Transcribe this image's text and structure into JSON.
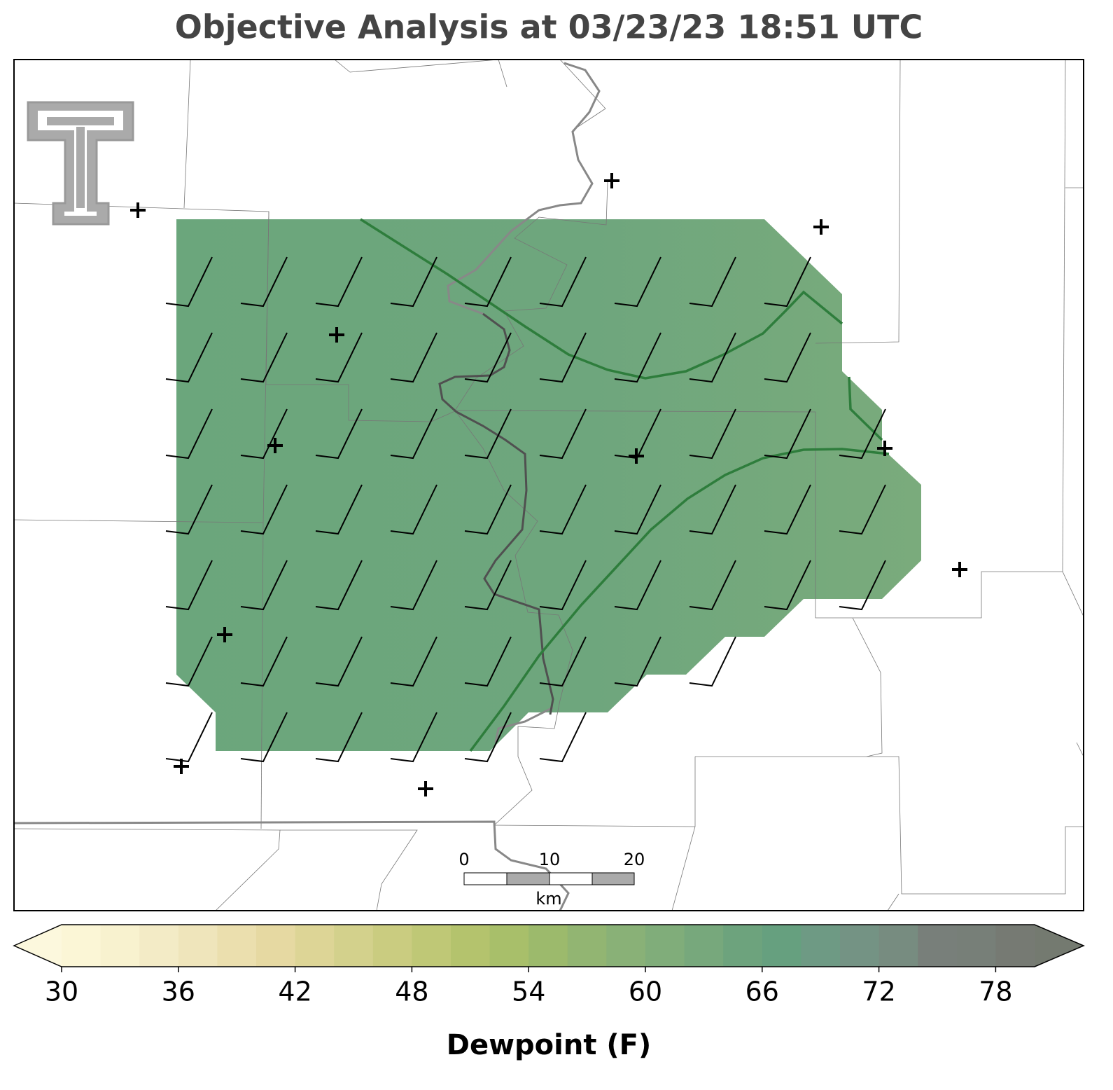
{
  "title": "Objective Analysis at 03/23/23 18:51 UTC",
  "scale_bar": {
    "labels": [
      "0",
      "10",
      "20"
    ],
    "unit": "km"
  },
  "colorbar": {
    "label": "Dewpoint (F)",
    "lim": [
      30,
      80
    ],
    "ticks": [
      30,
      36,
      42,
      48,
      54,
      60,
      66,
      72,
      78
    ],
    "levels": [
      30,
      32,
      34,
      36,
      38,
      40,
      42,
      44,
      46,
      48,
      50,
      52,
      54,
      56,
      58,
      60,
      62,
      64,
      66,
      68,
      70,
      72,
      74,
      76,
      78,
      80
    ],
    "colors": [
      "#fbf6d6",
      "#f8f2cf",
      "#f3ebc6",
      "#efe5bb",
      "#ebdfae",
      "#e6d9a2",
      "#ddd596",
      "#d3d18c",
      "#cacc80",
      "#bfc876",
      "#b4c36d",
      "#a8bf6a",
      "#9cba6c",
      "#92b572",
      "#89b177",
      "#80ad7a",
      "#77a87c",
      "#6da37d",
      "#66a07f",
      "#6e9a84",
      "#749384",
      "#778c80",
      "#787f7a",
      "#777f78",
      "#767a73"
    ],
    "under_color": "#fcf8dd",
    "over_color": "#747a70"
  }
}
